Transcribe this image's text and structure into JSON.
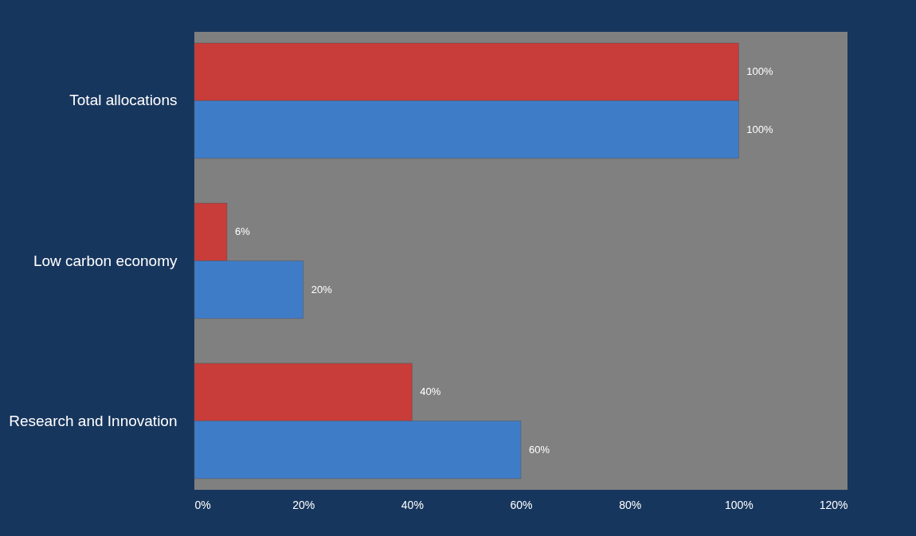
{
  "chart_data": {
    "type": "bar",
    "orientation": "horizontal",
    "categories": [
      "Total allocations",
      "Low carbon economy",
      "Research and Innovation"
    ],
    "series": [
      {
        "color": "#c83c3a",
        "values": [
          100,
          6,
          40
        ],
        "value_labels": [
          "100%",
          "6%",
          "40%"
        ]
      },
      {
        "color": "#3f7cc8",
        "values": [
          100,
          20,
          60
        ],
        "value_labels": [
          "100%",
          "20%",
          "60%"
        ]
      }
    ],
    "xlim": [
      0,
      120
    ],
    "xticks": [
      {
        "value": 0,
        "label": "0%"
      },
      {
        "value": 20,
        "label": "20%"
      },
      {
        "value": 40,
        "label": "40%"
      },
      {
        "value": 60,
        "label": "60%"
      },
      {
        "value": 80,
        "label": "80%"
      },
      {
        "value": 100,
        "label": "100%"
      },
      {
        "value": 120,
        "label": "120%"
      }
    ],
    "grid": false
  }
}
